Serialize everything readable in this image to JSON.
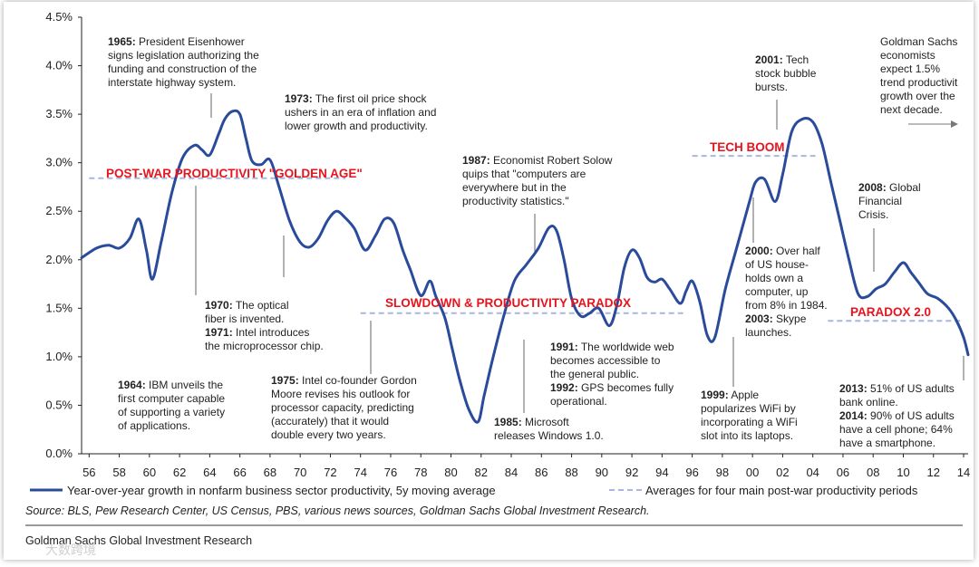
{
  "chart_data": {
    "type": "line",
    "title": "",
    "xlabel": "",
    "ylabel": "",
    "ylim": [
      0,
      4.5
    ],
    "y_ticks": [
      "0.0%",
      "0.5%",
      "1.0%",
      "1.5%",
      "2.0%",
      "2.5%",
      "3.0%",
      "3.5%",
      "4.0%",
      "4.5%"
    ],
    "xlim": [
      1955.5,
      2014.3
    ],
    "x_tick_labels": [
      "56",
      "58",
      "60",
      "62",
      "64",
      "66",
      "68",
      "70",
      "72",
      "74",
      "76",
      "78",
      "80",
      "82",
      "84",
      "86",
      "88",
      "90",
      "92",
      "94",
      "96",
      "98",
      "00",
      "02",
      "04",
      "06",
      "08",
      "10",
      "12",
      "14"
    ],
    "series": [
      {
        "name": "Year-over-year growth in nonfarm business sector productivity, 5y moving average",
        "color": "#2a4b9b",
        "x": [
          1955.5,
          1956.5,
          1957.3,
          1958.0,
          1958.7,
          1959.3,
          1959.8,
          1960.2,
          1960.8,
          1961.5,
          1962.2,
          1963.0,
          1963.5,
          1964.0,
          1964.6,
          1965.0,
          1965.5,
          1966.0,
          1966.4,
          1966.8,
          1967.4,
          1968.0,
          1968.6,
          1969.3,
          1970.0,
          1970.6,
          1971.2,
          1971.8,
          1972.4,
          1973.0,
          1973.6,
          1974.3,
          1975.0,
          1975.6,
          1976.2,
          1976.8,
          1977.3,
          1978.0,
          1978.6,
          1979.0,
          1979.6,
          1980.1,
          1980.6,
          1981.2,
          1981.8,
          1982.2,
          1982.8,
          1983.5,
          1984.2,
          1985.0,
          1985.8,
          1986.5,
          1987.0,
          1987.5,
          1988.0,
          1988.6,
          1989.2,
          1989.8,
          1990.5,
          1991.0,
          1991.5,
          1992.0,
          1992.5,
          1993.0,
          1993.5,
          1994.0,
          1994.5,
          1995.2,
          1995.6,
          1996.0,
          1996.5,
          1997.0,
          1997.5,
          1998.2,
          1999.0,
          1999.8,
          2000.2,
          2000.8,
          2001.5,
          2002.0,
          2002.6,
          2003.3,
          2004.0,
          2004.6,
          2005.2,
          2005.8,
          2006.4,
          2007.0,
          2007.6,
          2008.2,
          2008.8,
          2009.4,
          2010.0,
          2010.5,
          2011.0,
          2011.6,
          2012.3,
          2013.0,
          2013.5,
          2014.0,
          2014.3
        ],
        "values": [
          2.02,
          2.12,
          2.15,
          2.12,
          2.22,
          2.42,
          2.1,
          1.8,
          2.2,
          2.7,
          3.05,
          3.18,
          3.13,
          3.08,
          3.3,
          3.45,
          3.53,
          3.5,
          3.25,
          3.02,
          2.98,
          3.03,
          2.75,
          2.4,
          2.18,
          2.13,
          2.22,
          2.4,
          2.5,
          2.43,
          2.32,
          2.1,
          2.25,
          2.42,
          2.38,
          2.1,
          1.9,
          1.63,
          1.78,
          1.62,
          1.4,
          1.07,
          0.75,
          0.45,
          0.33,
          0.6,
          1.0,
          1.42,
          1.78,
          1.95,
          2.12,
          2.33,
          2.3,
          2.0,
          1.6,
          1.42,
          1.45,
          1.5,
          1.32,
          1.53,
          1.92,
          2.1,
          2.02,
          1.82,
          1.77,
          1.8,
          1.7,
          1.55,
          1.68,
          1.78,
          1.57,
          1.22,
          1.2,
          1.7,
          2.15,
          2.6,
          2.8,
          2.83,
          2.6,
          2.88,
          3.32,
          3.45,
          3.42,
          3.2,
          2.8,
          2.4,
          2.0,
          1.65,
          1.62,
          1.7,
          1.75,
          1.87,
          1.97,
          1.87,
          1.77,
          1.65,
          1.6,
          1.5,
          1.38,
          1.2,
          1.02
        ]
      },
      {
        "name": "Averages for four main post-war productivity periods",
        "color": "#a9b7dd",
        "segments": [
          {
            "label": "POST-WAR PRODUCTIVITY \"GOLDEN AGE\"",
            "x0": 1956.0,
            "x1": 1973.0,
            "value": 2.84
          },
          {
            "label": "SLOWDOWN & PRODUCTIVITY PARADOX",
            "x0": 1974.0,
            "x1": 1995.5,
            "value": 1.45
          },
          {
            "label": "TECH BOOM",
            "x0": 1996.0,
            "x1": 2004.3,
            "value": 3.07
          },
          {
            "label": "PARADOX 2.0",
            "x0": 2005.0,
            "x1": 2014.0,
            "value": 1.37
          }
        ]
      }
    ],
    "annotations": [
      {
        "lines": [
          [
            "1965:",
            " President Eisenhower"
          ],
          [
            "",
            "signs legislation authorizing the"
          ],
          [
            "",
            "funding and construction of the"
          ],
          [
            "",
            "interstate highway system."
          ]
        ]
      },
      {
        "lines": [
          [
            "1973:",
            " The first oil price shock"
          ],
          [
            "",
            "ushers in an era of inflation and"
          ],
          [
            "",
            "lower growth and productivity."
          ]
        ]
      },
      {
        "lines": [
          [
            "1987:",
            " Economist Robert Solow"
          ],
          [
            "",
            "quips that \"computers are"
          ],
          [
            "",
            "everywhere but in the"
          ],
          [
            "",
            "productivity statistics.\""
          ]
        ]
      },
      {
        "lines": [
          [
            "2001:",
            " Tech"
          ],
          [
            "",
            "stock bubble"
          ],
          [
            "",
            "bursts."
          ]
        ]
      },
      {
        "lines": [
          [
            "",
            "Goldman Sachs"
          ],
          [
            "",
            "economists"
          ],
          [
            "",
            "expect 1.5%"
          ],
          [
            "",
            "trend productivit"
          ],
          [
            "",
            "growth over the"
          ],
          [
            "",
            "next decade."
          ]
        ]
      },
      {
        "lines": [
          [
            "2008:",
            " Global"
          ],
          [
            "",
            "Financial"
          ],
          [
            "",
            "Crisis."
          ]
        ]
      },
      {
        "lines": [
          [
            "1970:",
            " The optical"
          ],
          [
            "",
            "fiber is invented."
          ],
          [
            "1971:",
            " Intel introduces"
          ],
          [
            "",
            "the microprocessor chip."
          ]
        ]
      },
      {
        "lines": [
          [
            "2000:",
            " Over half"
          ],
          [
            "",
            "of US house-"
          ],
          [
            "",
            "holds own a"
          ],
          [
            "",
            "computer, up"
          ],
          [
            "",
            "from 8% in 1984."
          ],
          [
            "2003:",
            " Skype"
          ],
          [
            "",
            "launches."
          ]
        ]
      },
      {
        "lines": [
          [
            "1991:",
            " The worldwide web"
          ],
          [
            "",
            "becomes accessible to"
          ],
          [
            "",
            "the general public."
          ],
          [
            "1992:",
            " GPS becomes fully"
          ],
          [
            "",
            "operational."
          ]
        ]
      },
      {
        "lines": [
          [
            "1964:",
            " IBM unveils the"
          ],
          [
            "",
            "first computer capable"
          ],
          [
            "",
            "of supporting a variety"
          ],
          [
            "",
            "of applications."
          ]
        ]
      },
      {
        "lines": [
          [
            "1975:",
            " Intel co-founder Gordon"
          ],
          [
            "",
            "Moore revises his outlook for"
          ],
          [
            "",
            "processor capacity, predicting"
          ],
          [
            "",
            "(accurately) that it would"
          ],
          [
            "",
            "double every two years."
          ]
        ]
      },
      {
        "lines": [
          [
            "1985:",
            " Microsoft"
          ],
          [
            "",
            "releases Windows 1.0."
          ]
        ]
      },
      {
        "lines": [
          [
            "1999:",
            " Apple"
          ],
          [
            "",
            "popularizes WiFi by"
          ],
          [
            "",
            "incorporating a WiFi"
          ],
          [
            "",
            "slot into its laptops."
          ]
        ]
      },
      {
        "lines": [
          [
            "2013:",
            " 51% of US adults"
          ],
          [
            "",
            "bank online."
          ],
          [
            "2014:",
            " 90% of US adults"
          ],
          [
            "",
            "have a cell phone; 64%"
          ],
          [
            "",
            "have a smartphone."
          ]
        ]
      }
    ],
    "legend": [
      "Year-over-year growth in nonfarm business sector productivity, 5y moving average",
      "Averages for four main post-war productivity periods"
    ],
    "source": "Source: BLS, Pew Research Center, US Census, PBS, various news sources, Goldman Sachs Global Investment Research.",
    "footer": "Goldman Sachs Global Investment Research",
    "watermark": "大数跨境",
    "colors": {
      "line": "#2a4b9b",
      "avg": "#a9b7dd",
      "period_label": "#e8131c"
    }
  }
}
